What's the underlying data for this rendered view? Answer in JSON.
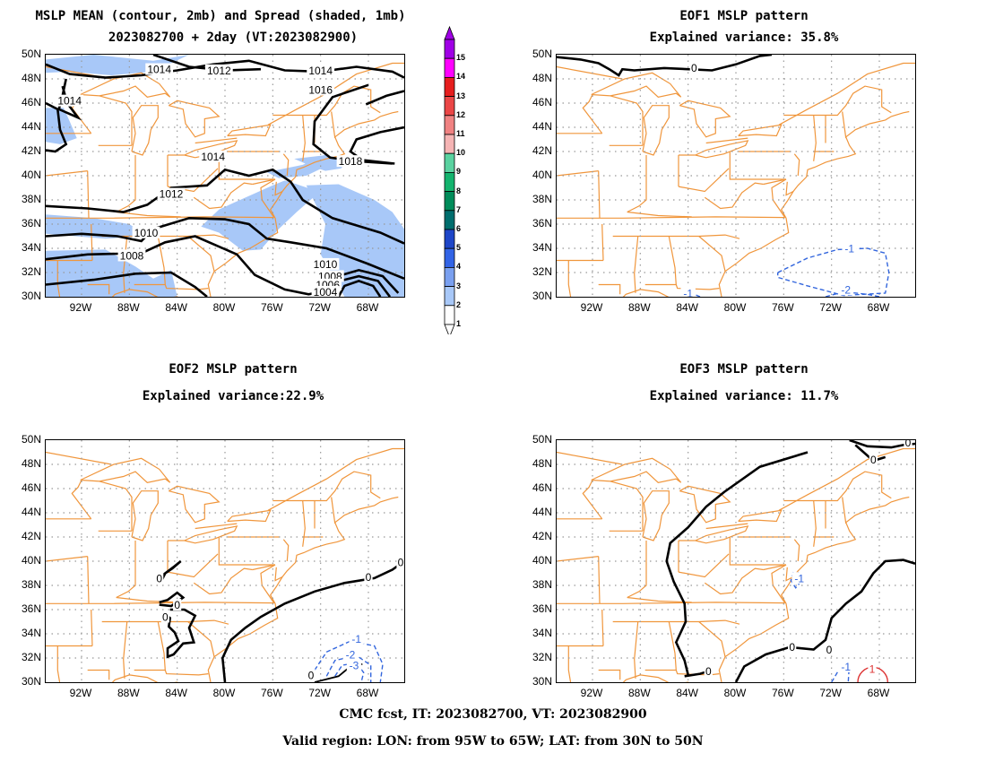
{
  "panels": [
    {
      "id": "mean",
      "title_line1": "MSLP MEAN (contour, 2mb) and Spread (shaded, 1mb)",
      "title_line2": "2023082700 + 2day (VT:2023082900)",
      "contour_labels": [
        "1014",
        "1012",
        "1014",
        "1016",
        "1014",
        "1018",
        "1014",
        "1012",
        "1010",
        "1008",
        "1010",
        "1008",
        "1006",
        "1004"
      ]
    },
    {
      "id": "eof1",
      "title_line1": "EOF1 MSLP pattern",
      "title_line2": "Explained variance: 35.8%",
      "contour_labels": [
        "0",
        "-1",
        "-2",
        "-1"
      ]
    },
    {
      "id": "eof2",
      "title_line1": "EOF2 MSLP pattern",
      "title_line2": "Explained variance:22.9%",
      "contour_labels": [
        "0",
        "0",
        "0",
        "0",
        "0",
        "0",
        "-1",
        "-2",
        "-3"
      ]
    },
    {
      "id": "eof3",
      "title_line1": "EOF3 MSLP pattern",
      "title_line2": "Explained variance: 11.7%",
      "contour_labels": [
        "0",
        "0",
        "0",
        "0",
        "0",
        "-1",
        "-1",
        "1"
      ]
    }
  ],
  "map": {
    "lat_labels": [
      "50N",
      "48N",
      "46N",
      "44N",
      "42N",
      "40N",
      "38N",
      "36N",
      "34N",
      "32N",
      "30N"
    ],
    "lon_labels": [
      "92W",
      "88W",
      "84W",
      "80W",
      "76W",
      "72W",
      "68W"
    ],
    "land_color": "#f0963c",
    "grid_color": "#999999",
    "spread_color": "#a8c8f8"
  },
  "colorbar": {
    "labels": [
      "15",
      "14",
      "13",
      "12",
      "11",
      "10",
      "9",
      "8",
      "7",
      "6",
      "5",
      "4",
      "3",
      "2",
      "1"
    ],
    "colors": [
      "#ffffff",
      "#a8c8f8",
      "#7aa0f0",
      "#3264e6",
      "#1e46c8",
      "#006e6e",
      "#008c5a",
      "#14b46e",
      "#5ad2a0",
      "#f5b4b4",
      "#f08282",
      "#eb4646",
      "#e61e1e",
      "#ff00ff",
      "#a000e6"
    ]
  },
  "footer": {
    "line1": "CMC fcst, IT: 2023082700, VT: 2023082900",
    "line2": "Valid region: LON: from 95W to 65W; LAT: from 30N to 50N"
  }
}
